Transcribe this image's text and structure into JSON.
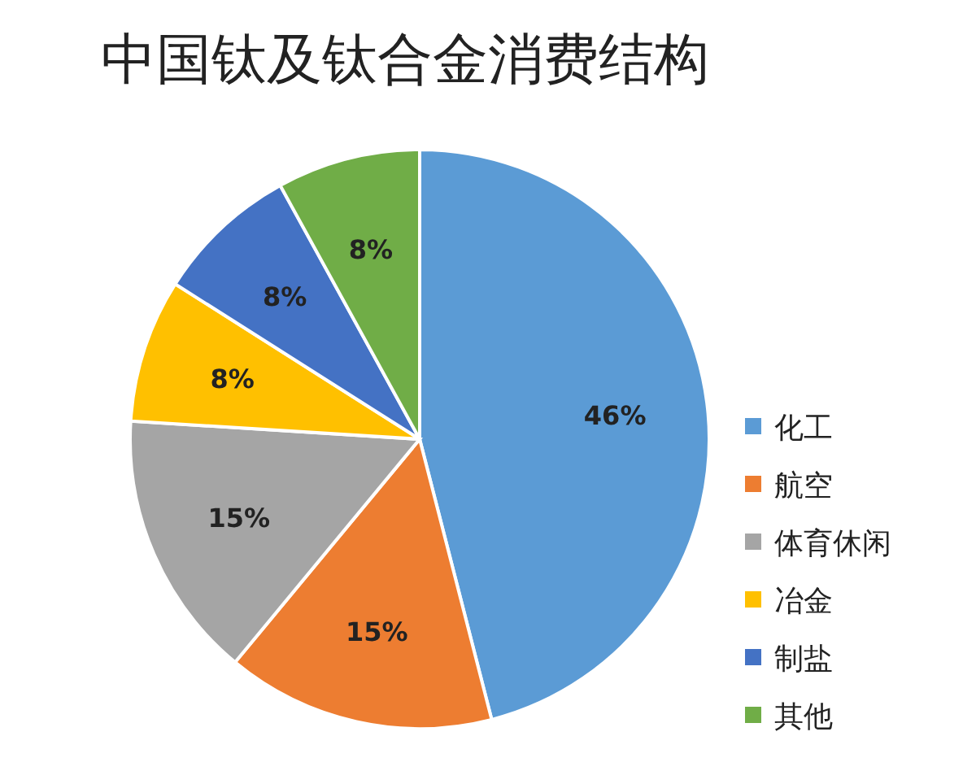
{
  "chart_data": {
    "type": "pie",
    "title": "中国钛及钛合金消费结构",
    "categories": [
      "化工",
      "航空",
      "体育休闲",
      "冶金",
      "制盐",
      "其他"
    ],
    "values": [
      46,
      15,
      15,
      8,
      8,
      8
    ],
    "colors": [
      "#5b9bd5",
      "#ed7d31",
      "#a5a5a5",
      "#ffc000",
      "#4472c4",
      "#70ad47"
    ],
    "value_labels": [
      "46%",
      "15%",
      "15%",
      "8%",
      "8%",
      "8%"
    ],
    "legend": "right"
  }
}
